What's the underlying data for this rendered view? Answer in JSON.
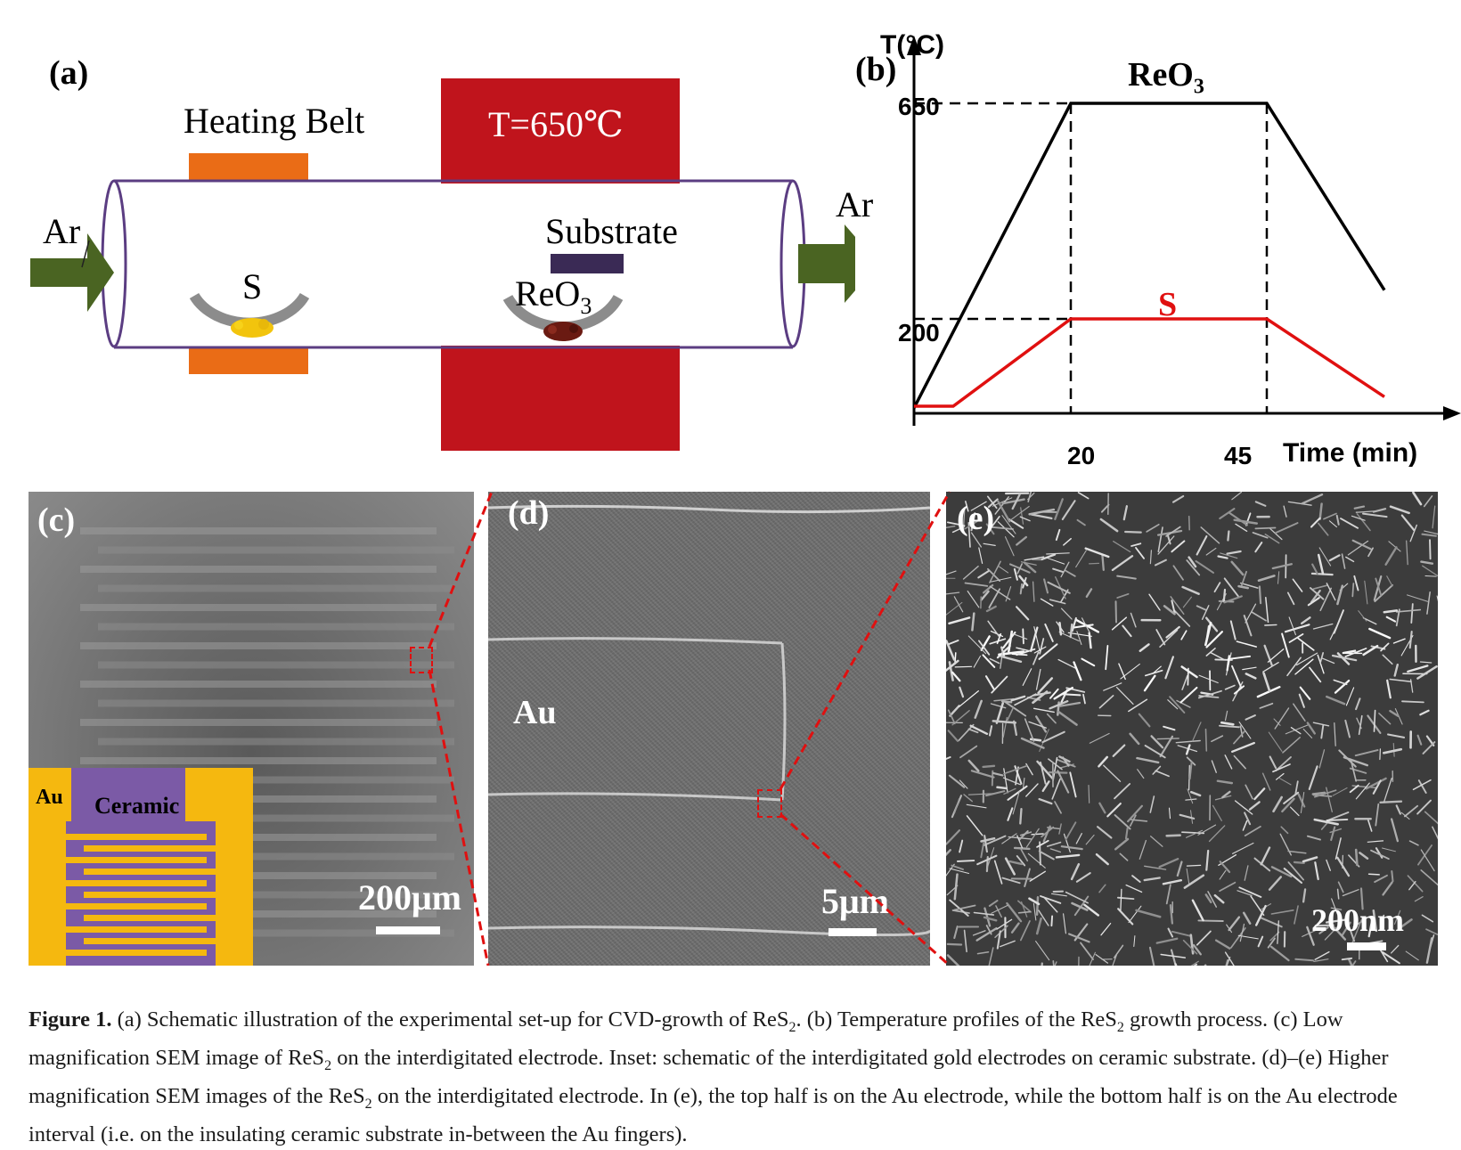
{
  "panel_a": {
    "label": "(a)",
    "heating_belt": "Heating Belt",
    "furnace_temp": "T=650℃",
    "ar_in": "Ar",
    "ar_out": "Ar",
    "substrate": "Substrate",
    "sulfur": "S",
    "reo3": "ReO",
    "reo3_sub": "3",
    "colors": {
      "furnace": "#c0141c",
      "belt": "#ea6c16",
      "tube": "#5b3d82",
      "arrow": "#4a6422",
      "boat": "#8c8c8c",
      "sulfur": "#f2c40d",
      "reo3_powder": "#6a1a12",
      "substrate": "#3a2a55"
    }
  },
  "panel_b": {
    "label": "(b)",
    "y_axis_label": "T(°C)",
    "x_axis_label": "Time (min)",
    "y_ticks": [
      "650",
      "200"
    ],
    "x_ticks": [
      "20",
      "45"
    ],
    "chart_data": {
      "type": "line",
      "xlabel": "Time (min)",
      "ylabel": "T(°C)",
      "series": [
        {
          "name": "ReO3",
          "color": "#000000",
          "points": [
            [
              0,
              0
            ],
            [
              20,
              650
            ],
            [
              45,
              650
            ],
            [
              60,
              260
            ]
          ]
        },
        {
          "name": "S",
          "color": "#e01010",
          "points": [
            [
              0,
              0
            ],
            [
              5,
              0
            ],
            [
              20,
              200
            ],
            [
              45,
              200
            ],
            [
              60,
              35
            ]
          ]
        }
      ]
    },
    "series_label_reo3": "ReO",
    "series_label_reo3_sub": "3",
    "series_label_s": "S"
  },
  "panel_c": {
    "label": "(c)",
    "scale": "200μm",
    "inset_au": "Au",
    "inset_ceramic": "Ceramic",
    "colors": {
      "au": "#f5b80f",
      "ceramic": "#7b5aa6",
      "zoom": "#e01010"
    }
  },
  "panel_d": {
    "label": "(d)",
    "scale": "5μm",
    "au_label": "Au"
  },
  "panel_e": {
    "label": "(e)",
    "scale": "200nm"
  },
  "caption": {
    "figure_label": "Figure 1.",
    "part1": " (a) Schematic illustration of the experimental set-up for CVD-growth of ReS",
    "sub1": "2",
    "part2": ". (b) Temperature profiles of the ReS",
    "sub2": "2",
    "part3": " growth process. (c) Low magnification SEM image of ReS",
    "sub3": "2",
    "part4": " on the interdigitated electrode. Inset: schematic of the interdigitated gold electrodes on ceramic substrate. (d)–(e) Higher magnification SEM images of the ReS",
    "sub4": "2",
    "part5": " on the interdigitated electrode. In (e), the top half is on the Au electrode, while the bottom half is on the Au electrode interval (i.e. on the insulating ceramic substrate in-between the Au fingers)."
  }
}
